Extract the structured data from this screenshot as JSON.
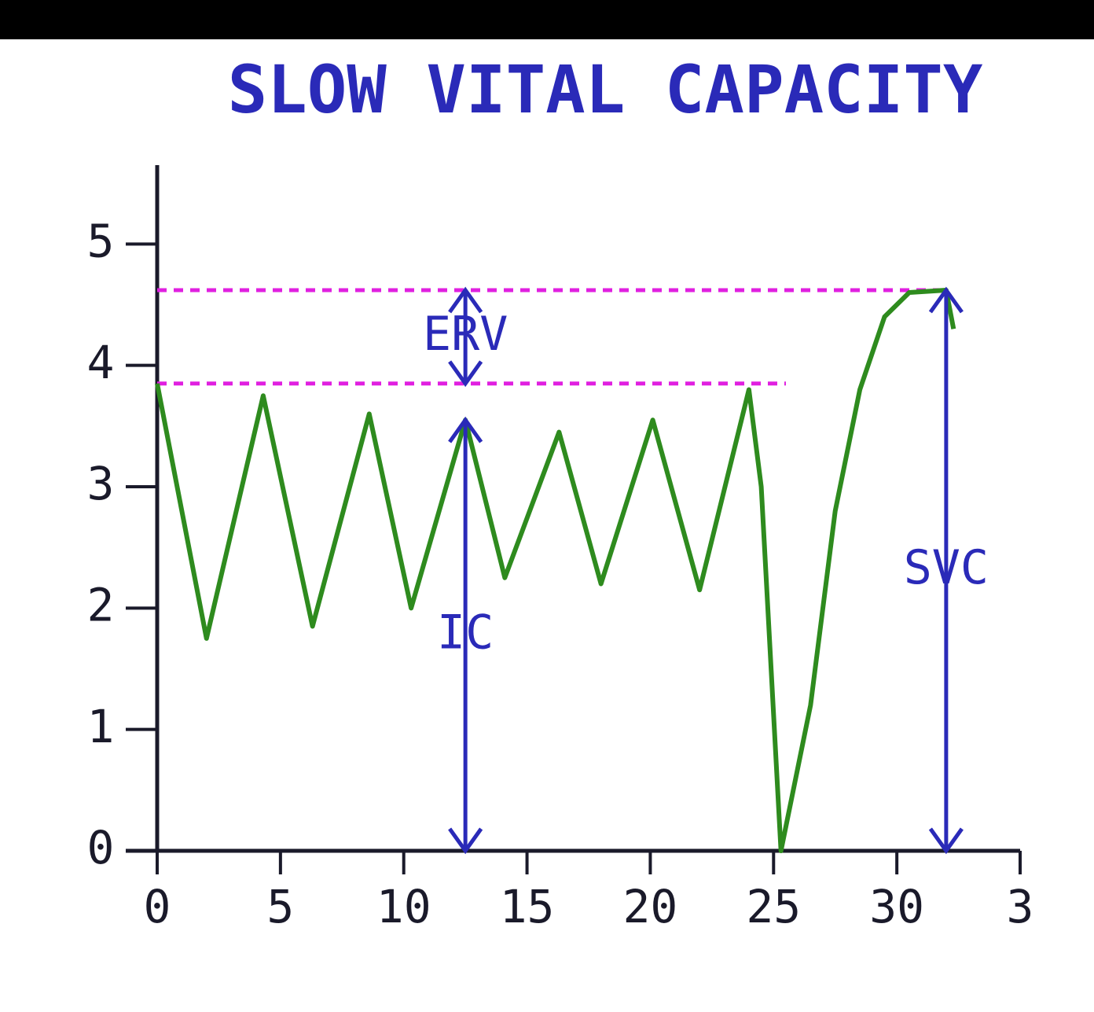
{
  "chart_data": {
    "type": "line",
    "title": "SLOW VITAL CAPACITY",
    "x": [
      0,
      2,
      4.3,
      6.3,
      8.6,
      10.3,
      12.5,
      14.1,
      16.3,
      18,
      20.1,
      22,
      24,
      24.5,
      25.3,
      26.5,
      27.5,
      28.5,
      29.5,
      30.5,
      32,
      32.3
    ],
    "values": [
      3.85,
      1.75,
      3.75,
      1.85,
      3.6,
      2.0,
      3.55,
      2.25,
      3.45,
      2.2,
      3.55,
      2.15,
      3.8,
      3.0,
      0,
      1.2,
      2.8,
      3.8,
      4.4,
      4.6,
      4.62,
      4.3
    ],
    "color": "#2e8b1e",
    "xlim": [
      0,
      35
    ],
    "xticks": [
      0,
      5,
      10,
      15,
      20,
      25,
      30,
      {
        "value": 35,
        "label": "3"
      }
    ],
    "ylim": [
      0,
      5.65
    ],
    "yticks": [
      0,
      1,
      2,
      3,
      4,
      5
    ],
    "reference_lines": [
      {
        "y": 4.62,
        "x": [
          0,
          32
        ],
        "color": "#e020e0"
      },
      {
        "y": 3.85,
        "x": [
          0,
          25.5
        ],
        "color": "#e020e0"
      }
    ],
    "arrows": [
      {
        "label": "ERV",
        "x": 12.5,
        "from": 3.85,
        "to": 4.62,
        "color": "#2a2ab8"
      },
      {
        "label": "IC",
        "x": 12.5,
        "from": 0,
        "to": 3.55,
        "color": "#2a2ab8"
      },
      {
        "label": "SVC",
        "x": 32,
        "from": 0,
        "to": 4.62,
        "color": "#2a2ab8"
      }
    ],
    "title_color": "#2a2ab8"
  }
}
